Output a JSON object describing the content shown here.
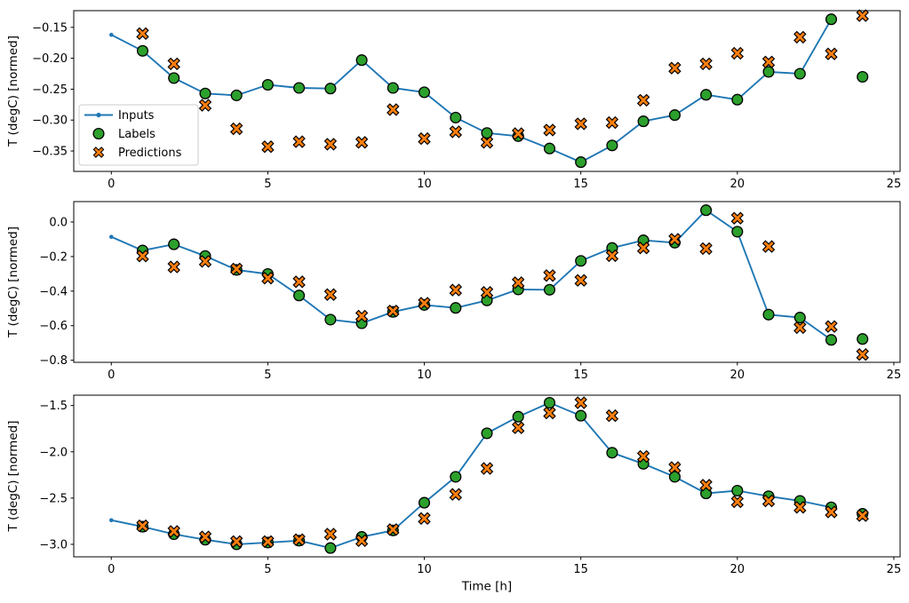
{
  "figure": {
    "background": "#ffffff",
    "xlabel": "Time [h]",
    "colors": {
      "inputs": "#1f77b4",
      "labels": "#2ca02c",
      "predictions": "#ff7f0e",
      "marker_edge": "#000000",
      "spine": "#000000",
      "text": "#000000",
      "legend_border": "#cccccc",
      "legend_bg": "#ffffff"
    },
    "legend": {
      "location": "left-middle-of-first-subplot",
      "items": [
        {
          "label": "Inputs",
          "marker": "line-with-dot",
          "color": "#1f77b4"
        },
        {
          "label": "Labels",
          "marker": "filled-circle",
          "color": "#2ca02c"
        },
        {
          "label": "Predictions",
          "marker": "filled-x",
          "color": "#ff7f0e"
        }
      ]
    }
  },
  "chart_data": [
    {
      "type": "line",
      "ylabel": "T (degC) [normed]",
      "xlim": [
        -1.2,
        25.2
      ],
      "ylim": [
        -0.383,
        -0.123
      ],
      "xticks": [
        0,
        5,
        10,
        15,
        20,
        25
      ],
      "xtick_labels": [
        "0",
        "5",
        "10",
        "15",
        "20",
        "25"
      ],
      "yticks": [
        -0.15,
        -0.2,
        -0.25,
        -0.3,
        -0.35
      ],
      "ytick_labels": [
        "−0.15",
        "−0.20",
        "−0.25",
        "−0.30",
        "−0.35"
      ],
      "grid": false,
      "has_legend": true,
      "series": [
        {
          "name": "Inputs",
          "type": "line",
          "marker": "dot",
          "x": [
            0,
            1,
            2,
            3,
            4,
            5,
            6,
            7,
            8,
            9,
            10,
            11,
            12,
            13,
            14,
            15,
            16,
            17,
            18,
            19,
            20,
            21,
            22,
            23
          ],
          "y": [
            -0.162,
            -0.188,
            -0.232,
            -0.257,
            -0.26,
            -0.243,
            -0.248,
            -0.249,
            -0.203,
            -0.248,
            -0.255,
            -0.296,
            -0.321,
            -0.326,
            -0.346,
            -0.368,
            -0.341,
            -0.302,
            -0.292,
            -0.259,
            -0.267,
            -0.222,
            -0.225,
            -0.137
          ]
        },
        {
          "name": "Labels",
          "type": "scatter",
          "marker": "circle",
          "x": [
            1,
            2,
            3,
            4,
            5,
            6,
            7,
            8,
            9,
            10,
            11,
            12,
            13,
            14,
            15,
            16,
            17,
            18,
            19,
            20,
            21,
            22,
            23,
            24
          ],
          "y": [
            -0.188,
            -0.232,
            -0.257,
            -0.26,
            -0.243,
            -0.248,
            -0.249,
            -0.203,
            -0.248,
            -0.255,
            -0.296,
            -0.321,
            -0.326,
            -0.346,
            -0.368,
            -0.341,
            -0.302,
            -0.292,
            -0.259,
            -0.267,
            -0.222,
            -0.225,
            -0.137,
            -0.23
          ]
        },
        {
          "name": "Predictions",
          "type": "scatter",
          "marker": "X",
          "x": [
            1,
            2,
            3,
            4,
            5,
            6,
            7,
            8,
            9,
            10,
            11,
            12,
            13,
            14,
            15,
            16,
            17,
            18,
            19,
            20,
            21,
            22,
            23,
            24
          ],
          "y": [
            -0.16,
            -0.209,
            -0.276,
            -0.314,
            -0.343,
            -0.335,
            -0.339,
            -0.336,
            -0.283,
            -0.33,
            -0.319,
            -0.336,
            -0.322,
            -0.316,
            -0.306,
            -0.304,
            -0.268,
            -0.216,
            -0.209,
            -0.192,
            -0.206,
            -0.166,
            -0.193,
            -0.131
          ]
        }
      ]
    },
    {
      "type": "line",
      "ylabel": "T (degC) [normed]",
      "xlim": [
        -1.2,
        25.2
      ],
      "ylim": [
        -0.812,
        0.118
      ],
      "xticks": [
        0,
        5,
        10,
        15,
        20,
        25
      ],
      "xtick_labels": [
        "0",
        "5",
        "10",
        "15",
        "20",
        "25"
      ],
      "yticks": [
        0.0,
        -0.2,
        -0.4,
        -0.6,
        -0.8
      ],
      "ytick_labels": [
        "0.0",
        "−0.2",
        "−0.4",
        "−0.6",
        "−0.8"
      ],
      "grid": false,
      "has_legend": false,
      "series": [
        {
          "name": "Inputs",
          "type": "line",
          "marker": "dot",
          "x": [
            0,
            1,
            2,
            3,
            4,
            5,
            6,
            7,
            8,
            9,
            10,
            11,
            12,
            13,
            14,
            15,
            16,
            17,
            18,
            19,
            20,
            21,
            22,
            23
          ],
          "y": [
            -0.086,
            -0.165,
            -0.129,
            -0.197,
            -0.277,
            -0.301,
            -0.425,
            -0.565,
            -0.586,
            -0.52,
            -0.48,
            -0.497,
            -0.454,
            -0.39,
            -0.392,
            -0.225,
            -0.15,
            -0.106,
            -0.12,
            0.068,
            -0.056,
            -0.536,
            -0.553,
            -0.682
          ]
        },
        {
          "name": "Labels",
          "type": "scatter",
          "marker": "circle",
          "x": [
            1,
            2,
            3,
            4,
            5,
            6,
            7,
            8,
            9,
            10,
            11,
            12,
            13,
            14,
            15,
            16,
            17,
            18,
            19,
            20,
            21,
            22,
            23,
            24
          ],
          "y": [
            -0.165,
            -0.129,
            -0.197,
            -0.277,
            -0.301,
            -0.425,
            -0.565,
            -0.586,
            -0.52,
            -0.48,
            -0.497,
            -0.454,
            -0.39,
            -0.392,
            -0.225,
            -0.15,
            -0.106,
            -0.12,
            0.068,
            -0.056,
            -0.536,
            -0.553,
            -0.682,
            -0.677
          ]
        },
        {
          "name": "Predictions",
          "type": "scatter",
          "marker": "X",
          "x": [
            1,
            2,
            3,
            4,
            5,
            6,
            7,
            8,
            9,
            10,
            11,
            12,
            13,
            14,
            15,
            16,
            17,
            18,
            19,
            20,
            21,
            22,
            23,
            24
          ],
          "y": [
            -0.197,
            -0.26,
            -0.228,
            -0.272,
            -0.325,
            -0.346,
            -0.42,
            -0.545,
            -0.515,
            -0.47,
            -0.394,
            -0.407,
            -0.351,
            -0.31,
            -0.338,
            -0.195,
            -0.15,
            -0.1,
            -0.154,
            0.022,
            -0.142,
            -0.611,
            -0.605,
            -0.767
          ]
        }
      ]
    },
    {
      "type": "line",
      "ylabel": "T (degC) [normed]",
      "xlim": [
        -1.2,
        25.2
      ],
      "ylim": [
        -3.135,
        -1.388
      ],
      "xticks": [
        0,
        5,
        10,
        15,
        20,
        25
      ],
      "xtick_labels": [
        "0",
        "5",
        "10",
        "15",
        "20",
        "25"
      ],
      "yticks": [
        -1.5,
        -2.0,
        -2.5,
        -3.0
      ],
      "ytick_labels": [
        "−1.5",
        "−2.0",
        "−2.5",
        "−3.0"
      ],
      "grid": false,
      "has_legend": false,
      "series": [
        {
          "name": "Inputs",
          "type": "line",
          "marker": "dot",
          "x": [
            0,
            1,
            2,
            3,
            4,
            5,
            6,
            7,
            8,
            9,
            10,
            11,
            12,
            13,
            14,
            15,
            16,
            17,
            18,
            19,
            20,
            21,
            22,
            23
          ],
          "y": [
            -2.74,
            -2.81,
            -2.89,
            -2.95,
            -3.0,
            -2.98,
            -2.96,
            -3.04,
            -2.92,
            -2.85,
            -2.55,
            -2.27,
            -1.8,
            -1.62,
            -1.47,
            -1.61,
            -2.01,
            -2.13,
            -2.27,
            -2.45,
            -2.42,
            -2.48,
            -2.53,
            -2.6
          ]
        },
        {
          "name": "Labels",
          "type": "scatter",
          "marker": "circle",
          "x": [
            1,
            2,
            3,
            4,
            5,
            6,
            7,
            8,
            9,
            10,
            11,
            12,
            13,
            14,
            15,
            16,
            17,
            18,
            19,
            20,
            21,
            22,
            23,
            24
          ],
          "y": [
            -2.81,
            -2.89,
            -2.95,
            -3.0,
            -2.98,
            -2.96,
            -3.04,
            -2.92,
            -2.85,
            -2.55,
            -2.27,
            -1.8,
            -1.62,
            -1.47,
            -1.61,
            -2.01,
            -2.13,
            -2.27,
            -2.45,
            -2.42,
            -2.48,
            -2.53,
            -2.6,
            -2.67
          ]
        },
        {
          "name": "Predictions",
          "type": "scatter",
          "marker": "X",
          "x": [
            1,
            2,
            3,
            4,
            5,
            6,
            7,
            8,
            9,
            10,
            11,
            12,
            13,
            14,
            15,
            16,
            17,
            18,
            19,
            20,
            21,
            22,
            23,
            24
          ],
          "y": [
            -2.8,
            -2.86,
            -2.92,
            -2.97,
            -2.97,
            -2.95,
            -2.89,
            -2.96,
            -2.84,
            -2.72,
            -2.46,
            -2.18,
            -1.74,
            -1.58,
            -1.47,
            -1.61,
            -2.05,
            -2.17,
            -2.36,
            -2.54,
            -2.53,
            -2.6,
            -2.65,
            -2.69
          ]
        }
      ]
    }
  ]
}
